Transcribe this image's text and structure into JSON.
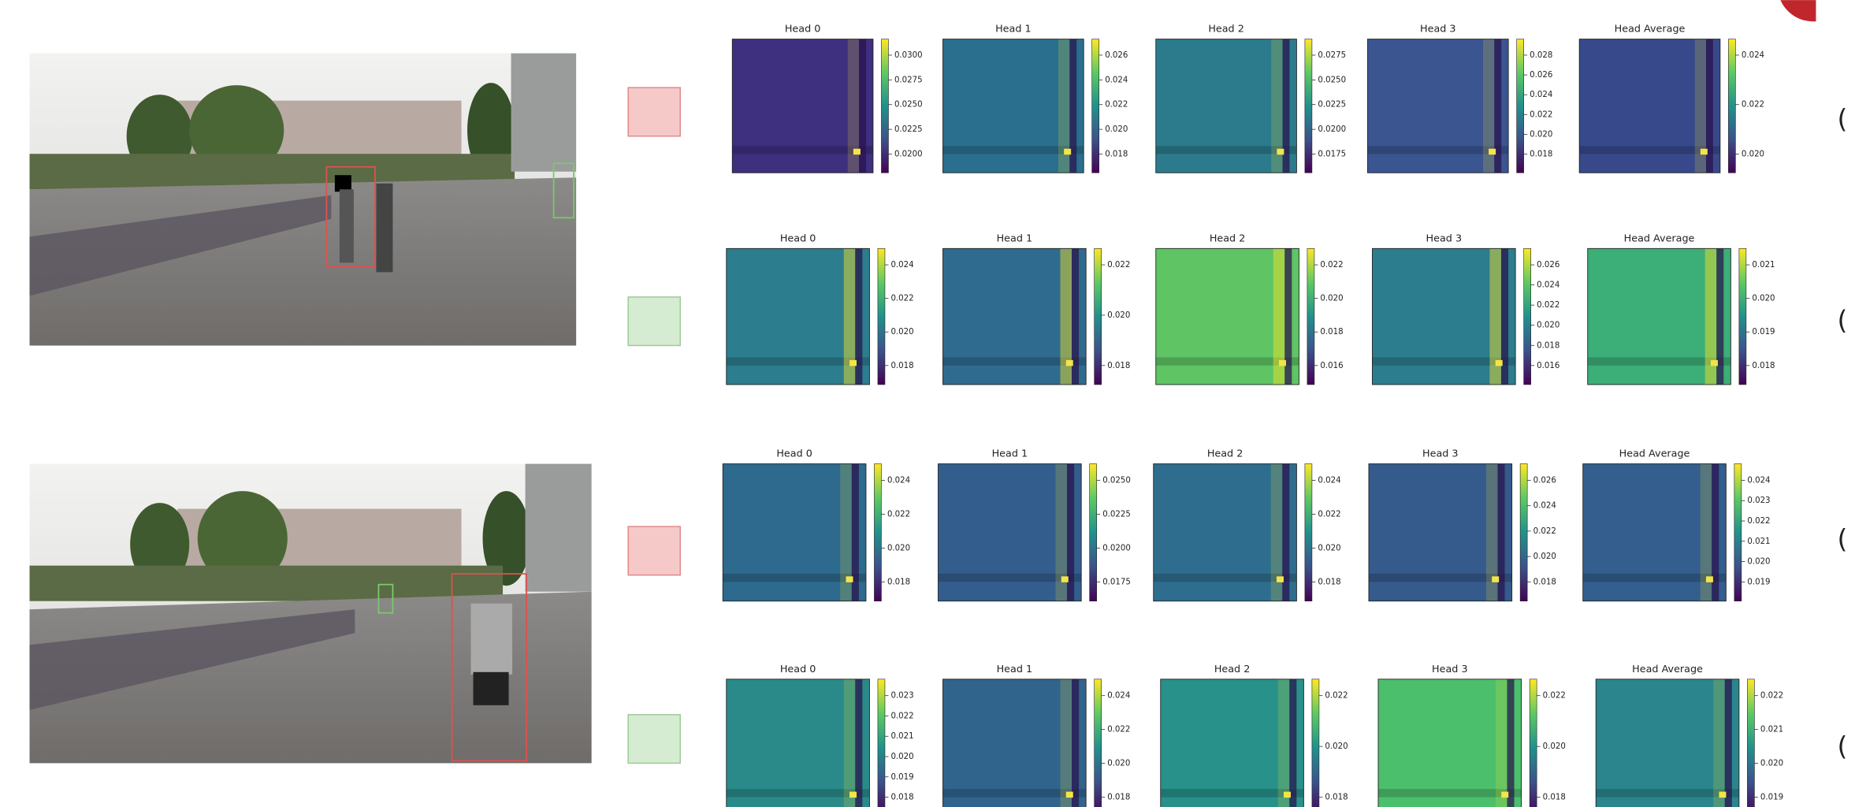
{
  "rows": [
    {
      "tag": "(",
      "panels": [
        {
          "title": "Head 0",
          "ticks": [
            "0.0300",
            "0.0275",
            "0.0250",
            "0.0225",
            "0.0200"
          ]
        },
        {
          "title": "Head 1",
          "ticks": [
            "0.026",
            "0.024",
            "0.022",
            "0.020",
            "0.018"
          ]
        },
        {
          "title": "Head 2",
          "ticks": [
            "0.0275",
            "0.0250",
            "0.0225",
            "0.0200",
            "0.0175"
          ]
        },
        {
          "title": "Head 3",
          "ticks": [
            "0.028",
            "0.026",
            "0.024",
            "0.022",
            "0.020",
            "0.018"
          ]
        },
        {
          "title": "Head Average",
          "ticks": [
            "0.024",
            "0.022",
            "0.020"
          ]
        }
      ]
    },
    {
      "tag": "(",
      "panels": [
        {
          "title": "Head 0",
          "ticks": [
            "0.024",
            "0.022",
            "0.020",
            "0.018"
          ]
        },
        {
          "title": "Head 1",
          "ticks": [
            "0.022",
            "0.020",
            "0.018"
          ]
        },
        {
          "title": "Head 2",
          "ticks": [
            "0.022",
            "0.020",
            "0.018",
            "0.016"
          ]
        },
        {
          "title": "Head 3",
          "ticks": [
            "0.026",
            "0.024",
            "0.022",
            "0.020",
            "0.018",
            "0.016"
          ]
        },
        {
          "title": "Head Average",
          "ticks": [
            "0.021",
            "0.020",
            "0.019",
            "0.018"
          ]
        }
      ]
    },
    {
      "tag": "(",
      "panels": [
        {
          "title": "Head 0",
          "ticks": [
            "0.024",
            "0.022",
            "0.020",
            "0.018"
          ]
        },
        {
          "title": "Head 1",
          "ticks": [
            "0.0250",
            "0.0225",
            "0.0200",
            "0.0175"
          ]
        },
        {
          "title": "Head 2",
          "ticks": [
            "0.024",
            "0.022",
            "0.020",
            "0.018"
          ]
        },
        {
          "title": "Head 3",
          "ticks": [
            "0.026",
            "0.024",
            "0.022",
            "0.020",
            "0.018"
          ]
        },
        {
          "title": "Head Average",
          "ticks": [
            "0.024",
            "0.023",
            "0.022",
            "0.021",
            "0.020",
            "0.019"
          ]
        }
      ]
    },
    {
      "tag": "(",
      "panels": [
        {
          "title": "Head 0",
          "ticks": [
            "0.023",
            "0.022",
            "0.021",
            "0.020",
            "0.019",
            "0.018"
          ]
        },
        {
          "title": "Head 1",
          "ticks": [
            "0.024",
            "0.022",
            "0.020",
            "0.018"
          ]
        },
        {
          "title": "Head 2",
          "ticks": [
            "0.022",
            "0.020",
            "0.018"
          ]
        },
        {
          "title": "Head 3",
          "ticks": [
            "0.022",
            "0.020",
            "0.018"
          ]
        },
        {
          "title": "Head Average",
          "ticks": [
            "0.022",
            "0.021",
            "0.020",
            "0.019"
          ]
        }
      ]
    }
  ]
}
